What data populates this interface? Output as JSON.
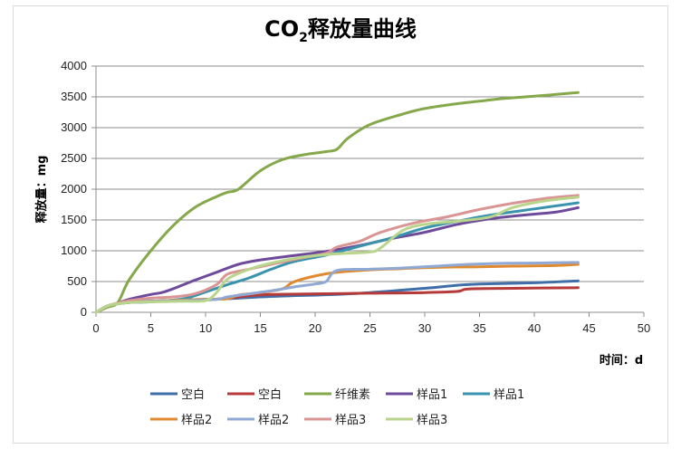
{
  "chart_data": {
    "type": "line",
    "title_main": "CO",
    "title_sub": "2",
    "title_rest": "释放量曲线",
    "xlabel": "时间：d",
    "ylabel": "释放量：mg",
    "xlim": [
      0,
      50
    ],
    "ylim": [
      0,
      4000
    ],
    "xticks": [
      0,
      5,
      10,
      15,
      20,
      25,
      30,
      35,
      40,
      45,
      50
    ],
    "yticks": [
      0,
      500,
      1000,
      1500,
      2000,
      2500,
      3000,
      3500,
      4000
    ],
    "grid": "horizontal",
    "legend_position": "bottom",
    "series": [
      {
        "name": "空白",
        "color": "#3f6ea8",
        "points": [
          [
            0,
            0
          ],
          [
            1,
            100
          ],
          [
            2,
            140
          ],
          [
            3,
            160
          ],
          [
            5,
            180
          ],
          [
            8,
            200
          ],
          [
            10,
            210
          ],
          [
            12,
            220
          ],
          [
            15,
            250
          ],
          [
            18,
            270
          ],
          [
            21,
            285
          ],
          [
            25,
            320
          ],
          [
            30,
            390
          ],
          [
            33,
            440
          ],
          [
            35,
            460
          ],
          [
            40,
            480
          ],
          [
            44,
            510
          ]
        ]
      },
      {
        "name": "空白",
        "color": "#b63a3a",
        "points": [
          [
            0,
            0
          ],
          [
            1,
            100
          ],
          [
            2,
            140
          ],
          [
            3,
            160
          ],
          [
            5,
            180
          ],
          [
            8,
            190
          ],
          [
            10,
            200
          ],
          [
            12,
            230
          ],
          [
            14,
            270
          ],
          [
            16,
            290
          ],
          [
            20,
            300
          ],
          [
            25,
            310
          ],
          [
            30,
            320
          ],
          [
            33,
            340
          ],
          [
            34,
            380
          ],
          [
            38,
            390
          ],
          [
            44,
            400
          ]
        ]
      },
      {
        "name": "纤维素",
        "color": "#84a84a",
        "points": [
          [
            0,
            0
          ],
          [
            1,
            80
          ],
          [
            2,
            160
          ],
          [
            3,
            520
          ],
          [
            5,
            1000
          ],
          [
            7,
            1400
          ],
          [
            9,
            1700
          ],
          [
            11,
            1880
          ],
          [
            12,
            1950
          ],
          [
            13,
            2000
          ],
          [
            15,
            2300
          ],
          [
            17,
            2480
          ],
          [
            19,
            2560
          ],
          [
            21,
            2610
          ],
          [
            22,
            2650
          ],
          [
            23,
            2830
          ],
          [
            25,
            3050
          ],
          [
            28,
            3220
          ],
          [
            30,
            3310
          ],
          [
            33,
            3390
          ],
          [
            35,
            3430
          ],
          [
            37,
            3470
          ],
          [
            40,
            3510
          ],
          [
            42,
            3540
          ],
          [
            44,
            3570
          ]
        ]
      },
      {
        "name": "样品1",
        "color": "#6e4a9a",
        "points": [
          [
            0,
            0
          ],
          [
            1,
            100
          ],
          [
            2,
            150
          ],
          [
            3,
            210
          ],
          [
            5,
            290
          ],
          [
            6,
            320
          ],
          [
            7,
            380
          ],
          [
            9,
            520
          ],
          [
            11,
            650
          ],
          [
            13,
            780
          ],
          [
            15,
            850
          ],
          [
            18,
            920
          ],
          [
            21,
            990
          ],
          [
            23,
            1050
          ],
          [
            25,
            1120
          ],
          [
            27,
            1200
          ],
          [
            30,
            1300
          ],
          [
            33,
            1430
          ],
          [
            36,
            1520
          ],
          [
            39,
            1580
          ],
          [
            42,
            1630
          ],
          [
            44,
            1700
          ]
        ]
      },
      {
        "name": "样品1",
        "color": "#3a93ad",
        "points": [
          [
            0,
            0
          ],
          [
            1,
            100
          ],
          [
            2,
            140
          ],
          [
            3,
            160
          ],
          [
            5,
            170
          ],
          [
            8,
            220
          ],
          [
            10,
            330
          ],
          [
            12,
            450
          ],
          [
            14,
            560
          ],
          [
            16,
            700
          ],
          [
            18,
            820
          ],
          [
            21,
            930
          ],
          [
            24,
            1070
          ],
          [
            27,
            1210
          ],
          [
            30,
            1370
          ],
          [
            33,
            1480
          ],
          [
            36,
            1580
          ],
          [
            40,
            1680
          ],
          [
            44,
            1780
          ]
        ]
      },
      {
        "name": "样品2",
        "color": "#e08a30",
        "points": [
          [
            0,
            0
          ],
          [
            1,
            100
          ],
          [
            2,
            140
          ],
          [
            3,
            160
          ],
          [
            5,
            180
          ],
          [
            8,
            200
          ],
          [
            10,
            210
          ],
          [
            12,
            220
          ],
          [
            13,
            280
          ],
          [
            15,
            320
          ],
          [
            17,
            380
          ],
          [
            18,
            490
          ],
          [
            20,
            590
          ],
          [
            22,
            650
          ],
          [
            25,
            690
          ],
          [
            28,
            710
          ],
          [
            31,
            730
          ],
          [
            35,
            740
          ],
          [
            38,
            750
          ],
          [
            42,
            760
          ],
          [
            44,
            780
          ]
        ]
      },
      {
        "name": "样品2",
        "color": "#8fa9d4",
        "points": [
          [
            0,
            0
          ],
          [
            1,
            100
          ],
          [
            2,
            140
          ],
          [
            3,
            160
          ],
          [
            5,
            180
          ],
          [
            8,
            190
          ],
          [
            11,
            210
          ],
          [
            12,
            250
          ],
          [
            14,
            300
          ],
          [
            16,
            350
          ],
          [
            18,
            410
          ],
          [
            20,
            460
          ],
          [
            21,
            500
          ],
          [
            22,
            680
          ],
          [
            25,
            700
          ],
          [
            28,
            720
          ],
          [
            31,
            750
          ],
          [
            34,
            780
          ],
          [
            37,
            795
          ],
          [
            40,
            800
          ],
          [
            44,
            810
          ]
        ]
      },
      {
        "name": "样品3",
        "color": "#d99594",
        "points": [
          [
            0,
            0
          ],
          [
            1,
            100
          ],
          [
            2,
            150
          ],
          [
            3,
            190
          ],
          [
            5,
            230
          ],
          [
            7,
            250
          ],
          [
            9,
            300
          ],
          [
            11,
            450
          ],
          [
            12,
            620
          ],
          [
            14,
            700
          ],
          [
            16,
            780
          ],
          [
            19,
            890
          ],
          [
            21,
            960
          ],
          [
            22,
            1060
          ],
          [
            24,
            1150
          ],
          [
            26,
            1300
          ],
          [
            29,
            1450
          ],
          [
            32,
            1550
          ],
          [
            35,
            1670
          ],
          [
            38,
            1770
          ],
          [
            41,
            1850
          ],
          [
            44,
            1900
          ]
        ]
      },
      {
        "name": "样品3",
        "color": "#b8d58b",
        "points": [
          [
            0,
            0
          ],
          [
            1,
            100
          ],
          [
            2,
            140
          ],
          [
            3,
            160
          ],
          [
            5,
            170
          ],
          [
            8,
            180
          ],
          [
            10,
            190
          ],
          [
            11,
            320
          ],
          [
            12,
            540
          ],
          [
            14,
            700
          ],
          [
            16,
            800
          ],
          [
            19,
            900
          ],
          [
            22,
            950
          ],
          [
            25,
            980
          ],
          [
            26,
            1050
          ],
          [
            28,
            1330
          ],
          [
            30,
            1430
          ],
          [
            33,
            1480
          ],
          [
            36,
            1550
          ],
          [
            38,
            1700
          ],
          [
            41,
            1810
          ],
          [
            44,
            1870
          ]
        ]
      }
    ]
  }
}
